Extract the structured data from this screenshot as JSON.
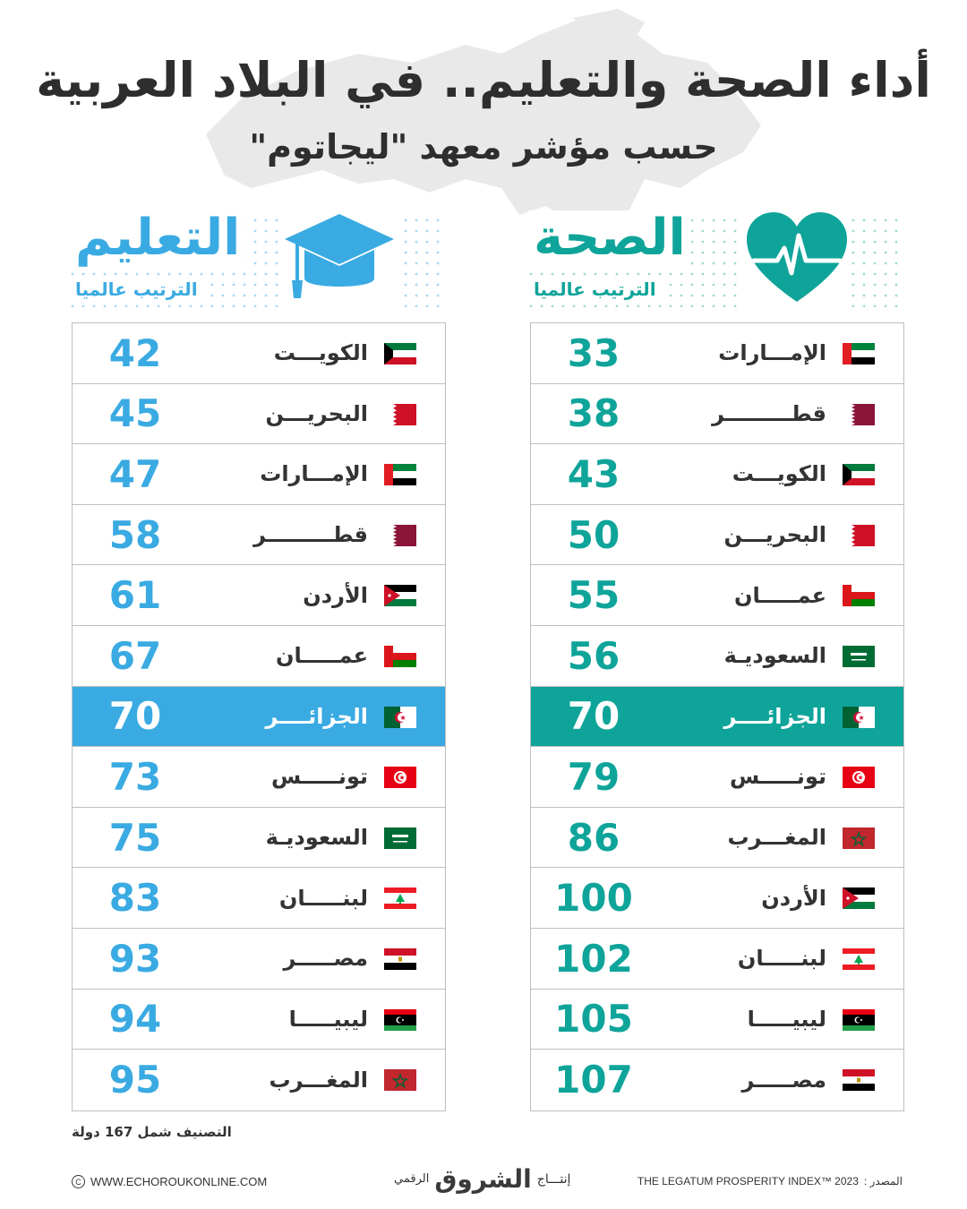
{
  "title": "أداء الصحة والتعليم.. في البلاد العربية",
  "subtitle": "حسب مؤشر معهد \"ليجاتوم\"",
  "health": {
    "title": "الصحة",
    "subtitle": "الترتيب عالميا",
    "icon": "heart-pulse-icon",
    "color": "#0fa49a",
    "rows": [
      {
        "country": "الإمـــارات",
        "rank": "33",
        "flag": "uae"
      },
      {
        "country": "قطـــــــــر",
        "rank": "38",
        "flag": "qatar"
      },
      {
        "country": "الكويـــت",
        "rank": "43",
        "flag": "kuwait"
      },
      {
        "country": "البحريـــن",
        "rank": "50",
        "flag": "bahrain"
      },
      {
        "country": "عمـــــان",
        "rank": "55",
        "flag": "oman"
      },
      {
        "country": "السعوديـة",
        "rank": "56",
        "flag": "saudi"
      },
      {
        "country": "الجزائــــر",
        "rank": "70",
        "flag": "algeria",
        "highlight": true
      },
      {
        "country": "تونـــــس",
        "rank": "79",
        "flag": "tunisia"
      },
      {
        "country": "المغـــرب",
        "rank": "86",
        "flag": "morocco"
      },
      {
        "country": "الأردن",
        "rank": "100",
        "flag": "jordan"
      },
      {
        "country": "لبنـــــان",
        "rank": "102",
        "flag": "lebanon"
      },
      {
        "country": "ليبيـــــا",
        "rank": "105",
        "flag": "libya"
      },
      {
        "country": "مصـــــر",
        "rank": "107",
        "flag": "egypt"
      }
    ]
  },
  "education": {
    "title": "التعليم",
    "subtitle": "الترتيب عالميا",
    "icon": "graduation-cap-icon",
    "color": "#3aaae2",
    "rows": [
      {
        "country": "الكويـــت",
        "rank": "42",
        "flag": "kuwait"
      },
      {
        "country": "البحريـــن",
        "rank": "45",
        "flag": "bahrain"
      },
      {
        "country": "الإمـــارات",
        "rank": "47",
        "flag": "uae"
      },
      {
        "country": "قطـــــــــر",
        "rank": "58",
        "flag": "qatar"
      },
      {
        "country": "الأردن",
        "rank": "61",
        "flag": "jordan"
      },
      {
        "country": "عمـــــان",
        "rank": "67",
        "flag": "oman"
      },
      {
        "country": "الجزائــــر",
        "rank": "70",
        "flag": "algeria",
        "highlight": true
      },
      {
        "country": "تونـــــس",
        "rank": "73",
        "flag": "tunisia"
      },
      {
        "country": "السعوديـة",
        "rank": "75",
        "flag": "saudi"
      },
      {
        "country": "لبنـــــان",
        "rank": "83",
        "flag": "lebanon"
      },
      {
        "country": "مصـــــر",
        "rank": "93",
        "flag": "egypt"
      },
      {
        "country": "ليبيـــــا",
        "rank": "94",
        "flag": "libya"
      },
      {
        "country": "المغـــرب",
        "rank": "95",
        "flag": "morocco"
      }
    ]
  },
  "note": "التصنيف شمل 167 دولة",
  "footer": {
    "website": "WWW.ECHOROUKONLINE.COM",
    "copyright_icon": "copyright-icon",
    "production": "إنتـــاج",
    "brand": "الشروق",
    "brand_suffix": "الرقمي",
    "source_label": "المصدر :",
    "source": "THE LEGATUM PROSPERITY INDEX™ 2023"
  }
}
